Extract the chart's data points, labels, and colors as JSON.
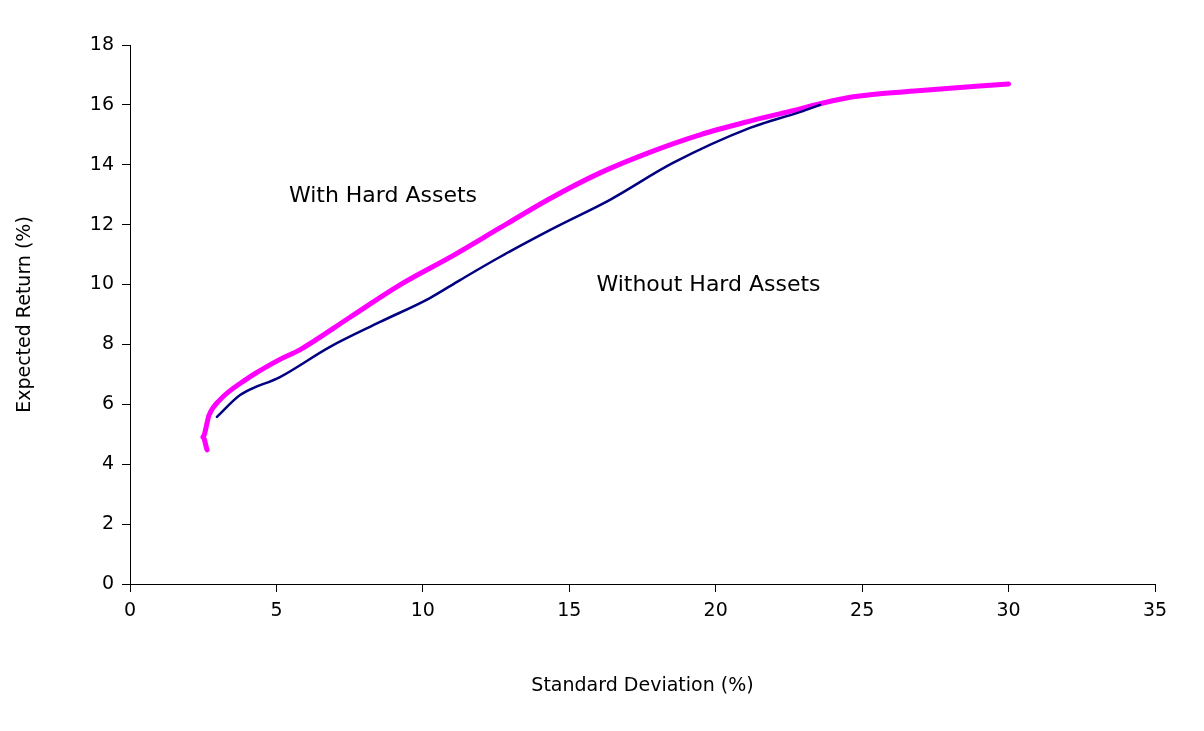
{
  "chart_data": {
    "type": "line",
    "xlabel": "Standard Deviation (%)",
    "ylabel": "Expected Return (%)",
    "xlim": [
      0,
      35
    ],
    "xticks": [
      0,
      5,
      10,
      15,
      20,
      25,
      30,
      35
    ],
    "ylim": [
      0,
      18
    ],
    "yticks": [
      0,
      2,
      4,
      6,
      8,
      10,
      12,
      14,
      16,
      18
    ],
    "grid": false,
    "legend": false,
    "marker": "none",
    "line_style": "solid",
    "series": [
      {
        "name": "With Hard Assets",
        "color": "#ff00ff",
        "x": [
          2.63,
          2.49,
          2.7,
          3.07,
          3.93,
          5.12,
          5.8,
          7.5,
          9.22,
          11.0,
          12.63,
          14.3,
          16.05,
          17.7,
          19.46,
          21.17,
          22.3,
          24.7,
          26.9,
          30.0
        ],
        "values": [
          4.48,
          4.91,
          5.64,
          6.15,
          6.81,
          7.5,
          7.82,
          8.9,
          9.99,
          10.95,
          11.89,
          12.85,
          13.73,
          14.4,
          15.0,
          15.46,
          15.73,
          16.27,
          16.47,
          16.7
        ]
      },
      {
        "name": "Without Hard Assets",
        "color": "#000080",
        "x": [
          2.97,
          3.76,
          5.12,
          6.83,
          8.54,
          10.24,
          11.27,
          12.63,
          14.5,
          16.39,
          18.54,
          21.17,
          22.87,
          23.56
        ],
        "values": [
          5.58,
          6.31,
          6.91,
          7.92,
          8.75,
          9.55,
          10.15,
          10.92,
          11.9,
          12.83,
          14.06,
          15.23,
          15.76,
          16.0
        ]
      }
    ]
  }
}
